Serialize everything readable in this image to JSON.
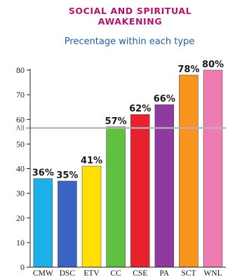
{
  "chart_data": {
    "type": "bar",
    "title": [
      "SOCIAL AND SPIRITUAL",
      "AWAKENING"
    ],
    "subtitle": "Precentage within each type",
    "categories": [
      "CMW",
      "DSC",
      "ETV",
      "CC",
      "CSE",
      "PA",
      "SCT",
      "WNL"
    ],
    "values": [
      36,
      35,
      41,
      57,
      62,
      66,
      78,
      80
    ],
    "value_labels": [
      "36%",
      "35%",
      "41%",
      "57%",
      "62%",
      "66%",
      "78%",
      "80%"
    ],
    "bar_colors": [
      "#1eaee8",
      "#3b63c4",
      "#ffe000",
      "#5fc13f",
      "#e8212e",
      "#8e3aa0",
      "#f7941d",
      "#ee7cb0"
    ],
    "ylim": [
      0,
      80
    ],
    "yticks": [
      0,
      10,
      20,
      30,
      40,
      50,
      60,
      70,
      80
    ],
    "reference_line": {
      "label": "All",
      "value": 56.5,
      "color": "#b5b5b5"
    },
    "grid": false,
    "title_color": "#b0156e",
    "subtitle_color": "#1f5fa8"
  }
}
